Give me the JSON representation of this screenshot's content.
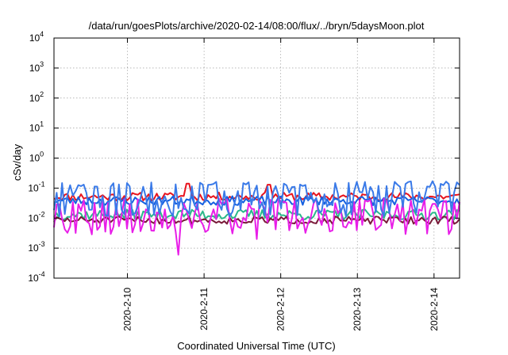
{
  "chart_data": {
    "type": "line",
    "title": "/data/run/goesPlots/archive/2020-02-14/08:00/flux/../bryn/5daysMoon.plot",
    "xlabel": "Coordinated Universal Time (UTC)",
    "ylabel": "cSv/day",
    "yscale": "log",
    "ylim": [
      0.0001,
      10000
    ],
    "yticks": [
      {
        "exp": -4,
        "label": "10",
        "sup": "-4"
      },
      {
        "exp": -3,
        "label": "10",
        "sup": "-3"
      },
      {
        "exp": -2,
        "label": "10",
        "sup": "-2"
      },
      {
        "exp": -1,
        "label": "10",
        "sup": "-1"
      },
      {
        "exp": 0,
        "label": "10",
        "sup": "0"
      },
      {
        "exp": 1,
        "label": "10",
        "sup": "1"
      },
      {
        "exp": 2,
        "label": "10",
        "sup": "2"
      },
      {
        "exp": 3,
        "label": "10",
        "sup": "3"
      },
      {
        "exp": 4,
        "label": "10",
        "sup": "4"
      }
    ],
    "xlim": [
      "2020-02-09T01:00",
      "2020-02-14T08:00"
    ],
    "xticks": [
      "2020-2-10",
      "2020-2-11",
      "2020-2-12",
      "2020-2-13",
      "2020-2-14"
    ],
    "grid": true,
    "series": [
      {
        "color": "#e8141e",
        "base": 0.052,
        "spread": 0.28,
        "seed": 11,
        "spikes": [
          [
            0.33,
            0.14
          ],
          [
            0.53,
            0.13
          ]
        ]
      },
      {
        "color": "#1560e0",
        "base": 0.038,
        "spread": 0.3,
        "seed": 23,
        "spikes": []
      },
      {
        "color": "#2ab98a",
        "base": 0.013,
        "spread": 0.35,
        "seed": 37,
        "spikes": []
      },
      {
        "color": "#7a1a3a",
        "base": 0.0085,
        "spread": 0.25,
        "seed": 51,
        "spikes": []
      },
      {
        "color": "#e81ee8",
        "base": 0.008,
        "spread": 0.9,
        "seed": 67,
        "spikes": [
          [
            0.305,
            0.0006
          ],
          [
            0.5,
            0.002
          ]
        ]
      },
      {
        "color": "#3a7ae8",
        "base": 0.03,
        "spread": 0.9,
        "seed": 79,
        "spikes": []
      }
    ]
  }
}
